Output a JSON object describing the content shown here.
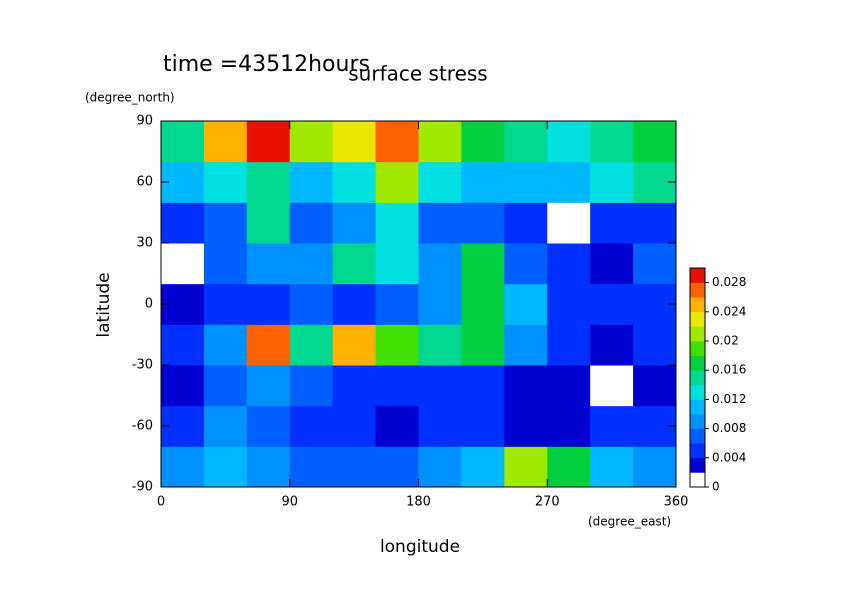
{
  "chart_data": {
    "type": "heatmap",
    "title": "surface stress",
    "subtitle": "time =43512hours",
    "x_label": "longitude",
    "x_unit": "(degree_east)",
    "y_label": "latitude",
    "y_unit": "(degree_north)",
    "xlim": [
      0,
      360
    ],
    "ylim": [
      -90,
      90
    ],
    "xticks": [
      0,
      90,
      180,
      270,
      360
    ],
    "yticks": [
      -90,
      -60,
      -30,
      0,
      30,
      60,
      90
    ],
    "x": [
      15,
      45,
      75,
      105,
      135,
      165,
      195,
      225,
      255,
      285,
      315,
      345
    ],
    "y": [
      -80,
      -60,
      -40,
      -20,
      0,
      20,
      40,
      60,
      80
    ],
    "z": [
      [
        0.008,
        0.01,
        0.008,
        0.006,
        0.006,
        0.006,
        0.008,
        0.01,
        0.02,
        0.016,
        0.01,
        0.008
      ],
      [
        0.004,
        0.008,
        0.006,
        0.004,
        0.004,
        0.002,
        0.004,
        0.004,
        0.002,
        0.002,
        0.004,
        0.004
      ],
      [
        0.002,
        0.006,
        0.008,
        0.006,
        0.004,
        0.004,
        0.004,
        0.004,
        0.002,
        0.002,
        0.001,
        0.002
      ],
      [
        0.004,
        0.008,
        0.026,
        0.014,
        0.024,
        0.018,
        0.014,
        0.016,
        0.008,
        0.004,
        0.002,
        0.004
      ],
      [
        0.002,
        0.004,
        0.004,
        0.006,
        0.004,
        0.006,
        0.008,
        0.016,
        0.01,
        0.004,
        0.004,
        0.004
      ],
      [
        0.001,
        0.006,
        0.008,
        0.008,
        0.014,
        0.012,
        0.008,
        0.016,
        0.006,
        0.004,
        0.002,
        0.006
      ],
      [
        0.004,
        0.006,
        0.014,
        0.006,
        0.008,
        0.012,
        0.006,
        0.006,
        0.004,
        0.001,
        0.004,
        0.004
      ],
      [
        0.01,
        0.012,
        0.014,
        0.01,
        0.012,
        0.02,
        0.012,
        0.01,
        0.01,
        0.01,
        0.012,
        0.014
      ],
      [
        0.014,
        0.024,
        0.028,
        0.02,
        0.022,
        0.026,
        0.02,
        0.016,
        0.014,
        0.012,
        0.014,
        0.016
      ]
    ],
    "clim": [
      0,
      0.03
    ],
    "colors": [
      "#ffffff",
      "#0000d0",
      "#0030ff",
      "#0060ff",
      "#0090ff",
      "#00b8ff",
      "#00e0e0",
      "#00d890",
      "#00d040",
      "#40e000",
      "#a0e800",
      "#e8e800",
      "#ffb000",
      "#ff6000",
      "#e81000"
    ],
    "cticks": [
      0,
      0.004,
      0.008,
      0.012,
      0.016,
      0.02,
      0.024,
      0.028
    ]
  }
}
